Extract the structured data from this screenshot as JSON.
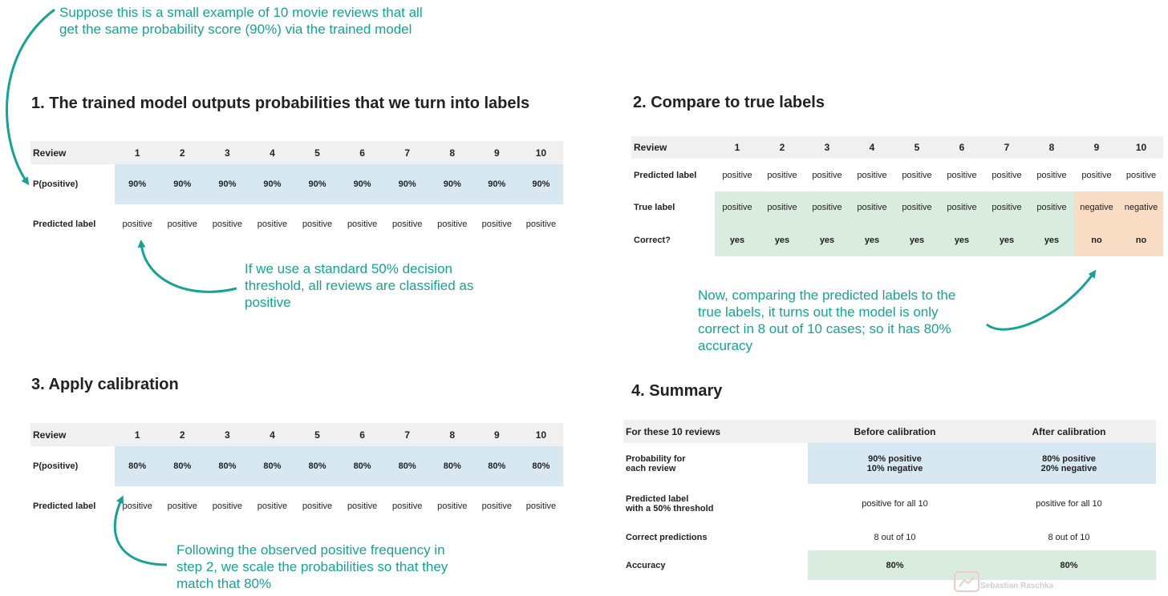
{
  "notes": {
    "top": "Suppose this is a small example of 10 movie reviews that all get the same probability score (90%) via the trained model",
    "threshold": "If we use a standard 50% decision threshold, all reviews are classified as positive",
    "compare": "Now, comparing the predicted labels to the true labels, it turns out the model is only correct in 8 out of 10 cases; so it has 80% accuracy",
    "calibrate": "Following the observed positive frequency in step 2, we scale the probabilities so that they match that 80%"
  },
  "section1": {
    "title": "1. The trained model outputs probabilities that we turn into labels",
    "row_labels": [
      "Review",
      "P(positive)",
      "Predicted label"
    ],
    "reviews": [
      "1",
      "2",
      "3",
      "4",
      "5",
      "6",
      "7",
      "8",
      "9",
      "10"
    ],
    "probs": [
      "90%",
      "90%",
      "90%",
      "90%",
      "90%",
      "90%",
      "90%",
      "90%",
      "90%",
      "90%"
    ],
    "predicted": [
      "positive",
      "positive",
      "positive",
      "positive",
      "positive",
      "positive",
      "positive",
      "positive",
      "positive",
      "positive"
    ]
  },
  "section2": {
    "title": "2. Compare to true labels",
    "row_labels": [
      "Review",
      "Predicted label",
      "True label",
      "Correct?"
    ],
    "reviews": [
      "1",
      "2",
      "3",
      "4",
      "5",
      "6",
      "7",
      "8",
      "9",
      "10"
    ],
    "predicted": [
      "positive",
      "positive",
      "positive",
      "positive",
      "positive",
      "positive",
      "positive",
      "positive",
      "positive",
      "positive"
    ],
    "true": [
      "positive",
      "positive",
      "positive",
      "positive",
      "positive",
      "positive",
      "positive",
      "positive",
      "negative",
      "negative"
    ],
    "correct": [
      "yes",
      "yes",
      "yes",
      "yes",
      "yes",
      "yes",
      "yes",
      "yes",
      "no",
      "no"
    ]
  },
  "section3": {
    "title": "3. Apply calibration",
    "row_labels": [
      "Review",
      "P(positive)",
      "Predicted label"
    ],
    "reviews": [
      "1",
      "2",
      "3",
      "4",
      "5",
      "6",
      "7",
      "8",
      "9",
      "10"
    ],
    "probs": [
      "80%",
      "80%",
      "80%",
      "80%",
      "80%",
      "80%",
      "80%",
      "80%",
      "80%",
      "80%"
    ],
    "predicted": [
      "positive",
      "positive",
      "positive",
      "positive",
      "positive",
      "positive",
      "positive",
      "positive",
      "positive",
      "positive"
    ]
  },
  "section4": {
    "title": "4. Summary",
    "header": [
      "For these 10 reviews",
      "Before calibration",
      "After calibration"
    ],
    "rows": [
      {
        "label_l1": "Probability for",
        "label_l2": "each review",
        "before_l1": "90% positive",
        "before_l2": "10% negative",
        "after_l1": "80% positive",
        "after_l2": "20% negative"
      },
      {
        "label_l1": "Predicted label",
        "label_l2": "with a 50% threshold",
        "before": "positive for all 10",
        "after": "positive for all 10"
      },
      {
        "label": "Correct predictions",
        "before": "8 out of 10",
        "after": "8 out of 10"
      },
      {
        "label": "Accuracy",
        "before": "80%",
        "after": "80%"
      }
    ]
  },
  "watermark": "Sebastian Raschka",
  "colors": {
    "accent": "#17a295",
    "blue_cell": "#d8e8f3",
    "green_cell": "#d9ecdf",
    "orange_cell": "#f8dcc4",
    "header_row": "#f0f0f0"
  }
}
